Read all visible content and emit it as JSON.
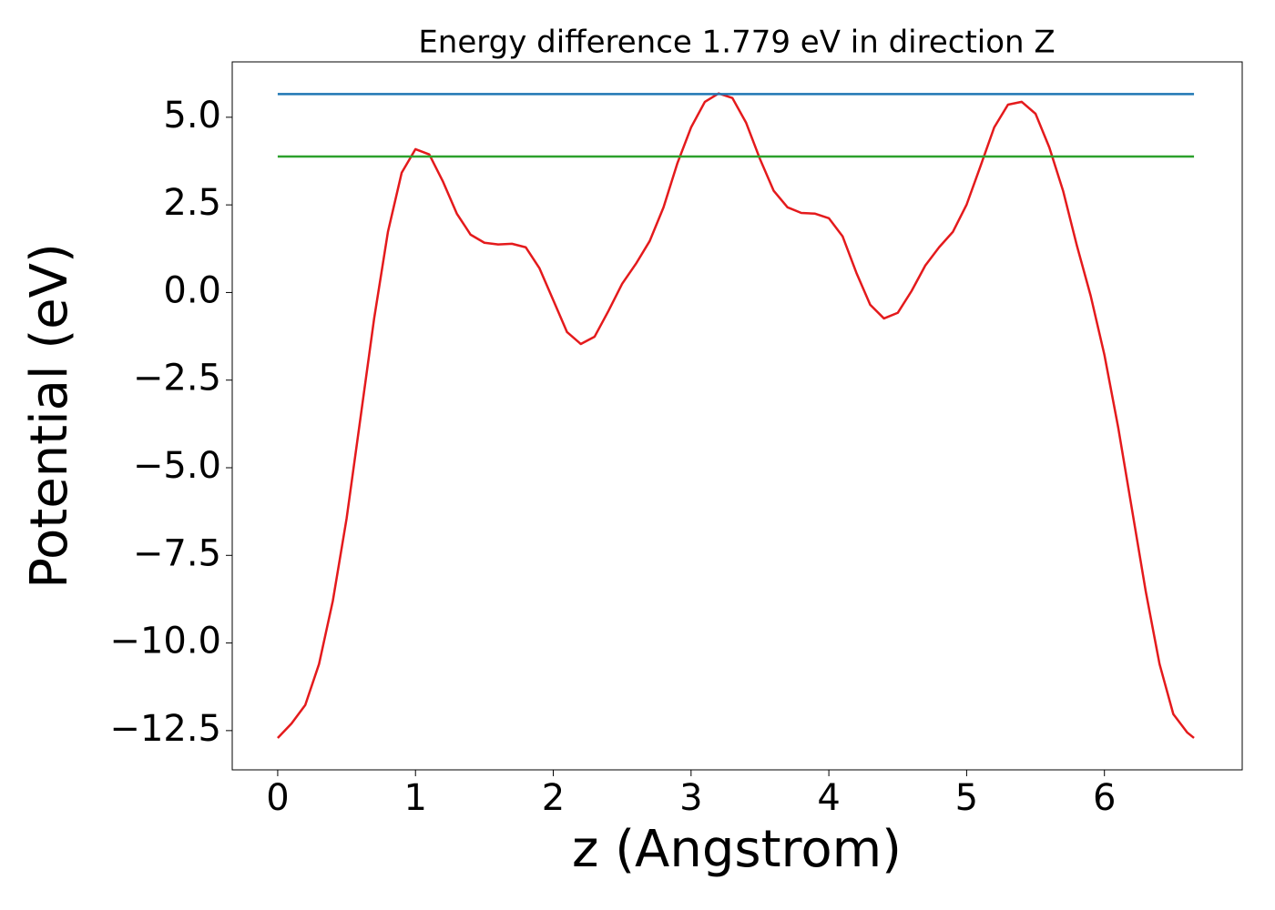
{
  "chart_data": {
    "type": "line",
    "title": "Energy difference 1.779 eV in direction Z",
    "xlabel": "z (Angstrom)",
    "ylabel": "Potential (eV)",
    "series": [
      {
        "color": "#e41a1c",
        "x": [
          0,
          0.1,
          0.2,
          0.3,
          0.4,
          0.5,
          0.6,
          0.7,
          0.8,
          0.9,
          1.0,
          1.1,
          1.2,
          1.3,
          1.4,
          1.5,
          1.6,
          1.7,
          1.8,
          1.9,
          2.0,
          2.1,
          2.2,
          2.3,
          2.4,
          2.5,
          2.6,
          2.7,
          2.8,
          2.9,
          3.0,
          3.1,
          3.2,
          3.3,
          3.4,
          3.5,
          3.6,
          3.7,
          3.8,
          3.9,
          4.0,
          4.1,
          4.2,
          4.3,
          4.4,
          4.5,
          4.6,
          4.7,
          4.8,
          4.9,
          5.0,
          5.1,
          5.2,
          5.3,
          5.4,
          5.5,
          5.6,
          5.7,
          5.8,
          5.9,
          6.0,
          6.1,
          6.2,
          6.3,
          6.4,
          6.5,
          6.6,
          6.65
        ],
        "values": [
          -12.71,
          -12.3,
          -11.77,
          -10.6,
          -8.8,
          -6.45,
          -3.6,
          -0.74,
          1.73,
          3.42,
          4.09,
          3.94,
          3.16,
          2.25,
          1.65,
          1.42,
          1.37,
          1.39,
          1.29,
          0.69,
          -0.22,
          -1.13,
          -1.47,
          -1.26,
          -0.53,
          0.25,
          0.82,
          1.47,
          2.43,
          3.68,
          4.71,
          5.44,
          5.68,
          5.55,
          4.84,
          3.81,
          2.9,
          2.43,
          2.27,
          2.25,
          2.12,
          1.6,
          0.56,
          -0.35,
          -0.74,
          -0.58,
          0.04,
          0.77,
          1.29,
          1.73,
          2.51,
          3.6,
          4.71,
          5.36,
          5.44,
          5.1,
          4.14,
          2.9,
          1.34,
          -0.09,
          -1.78,
          -3.85,
          -6.19,
          -8.53,
          -10.6,
          -12.03,
          -12.55,
          -12.71
        ]
      },
      {
        "color": "#1f77b4",
        "x": [
          0,
          6.65
        ],
        "values": [
          5.66,
          5.66
        ]
      },
      {
        "color": "#2ca02c",
        "x": [
          0,
          6.65
        ],
        "values": [
          3.88,
          3.88
        ]
      }
    ],
    "xlim": [
      -0.33,
      7.0
    ],
    "ylim": [
      -13.62,
      6.58
    ],
    "xticks": [
      0,
      1,
      2,
      3,
      4,
      5,
      6
    ],
    "yticks": [
      {
        "value": 5.0,
        "label": "5.0"
      },
      {
        "value": 2.5,
        "label": "2.5"
      },
      {
        "value": 0.0,
        "label": "0.0"
      },
      {
        "value": -2.5,
        "label": "−2.5"
      },
      {
        "value": -5.0,
        "label": "−5.0"
      },
      {
        "value": -7.5,
        "label": "−7.5"
      },
      {
        "value": -10.0,
        "label": "−10.0"
      },
      {
        "value": -12.5,
        "label": "−12.5"
      }
    ],
    "grid": false
  }
}
